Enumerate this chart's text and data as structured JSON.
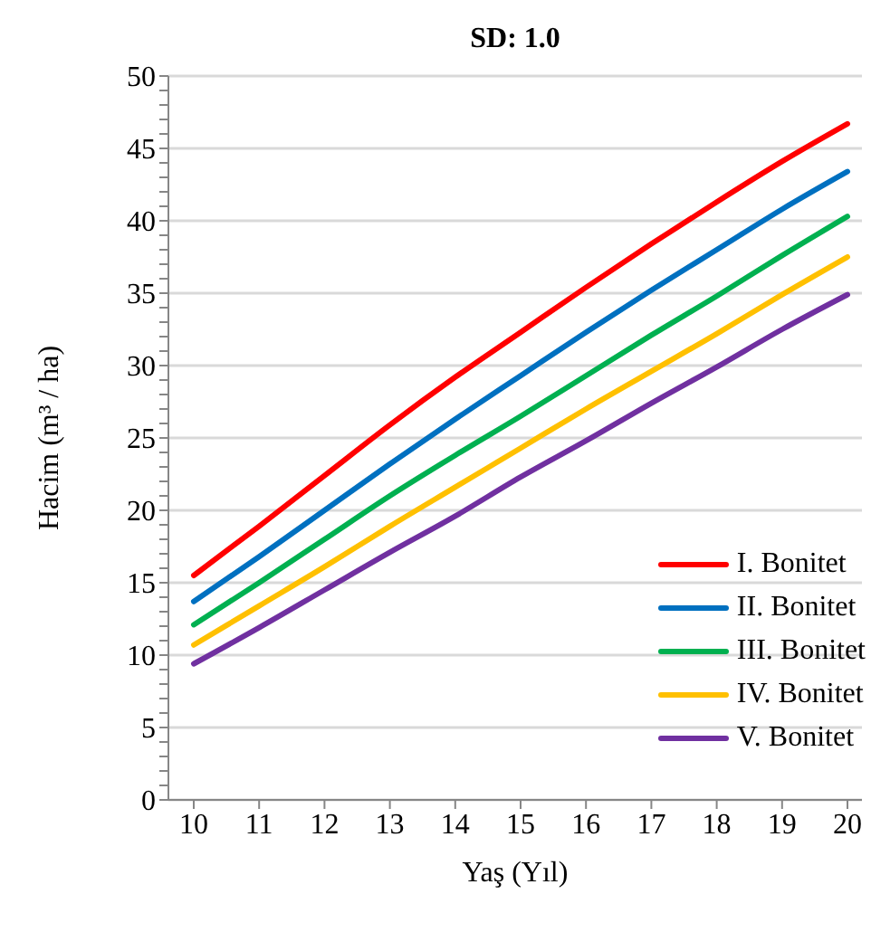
{
  "chart_data": {
    "type": "line",
    "title": "SD: 1.0",
    "xlabel": "Yaş (Yıl)",
    "ylabel": "Hacim (m³ / ha)",
    "categories": [
      "10",
      "11",
      "12",
      "13",
      "14",
      "15",
      "16",
      "17",
      "18",
      "19",
      "20"
    ],
    "series": [
      {
        "name": "I. Bonitet",
        "color": "#ff0000",
        "values": [
          15.5,
          18.9,
          22.4,
          25.9,
          29.2,
          32.3,
          35.4,
          38.4,
          41.3,
          44.1,
          46.7
        ]
      },
      {
        "name": "II. Bonitet",
        "color": "#0070c0",
        "values": [
          13.7,
          16.8,
          20.0,
          23.2,
          26.3,
          29.3,
          32.3,
          35.2,
          38.0,
          40.8,
          43.4
        ]
      },
      {
        "name": "III. Bonitet",
        "color": "#00b050",
        "values": [
          12.1,
          15.0,
          18.0,
          21.0,
          23.8,
          26.5,
          29.3,
          32.1,
          34.8,
          37.6,
          40.3
        ]
      },
      {
        "name": "IV. Bonitet",
        "color": "#ffc000",
        "values": [
          10.7,
          13.4,
          16.1,
          18.9,
          21.6,
          24.3,
          27.0,
          29.6,
          32.2,
          34.9,
          37.5
        ]
      },
      {
        "name": "V. Bonitet",
        "color": "#7030a0",
        "values": [
          9.4,
          11.9,
          14.5,
          17.1,
          19.6,
          22.3,
          24.8,
          27.4,
          29.9,
          32.5,
          34.9
        ]
      }
    ],
    "ylim": [
      0,
      50
    ],
    "yticks": [
      0,
      {
        "value": 1,
        "label": null
      },
      {
        "value": 2,
        "label": null
      },
      {
        "value": 3,
        "label": null
      },
      {
        "value": 4,
        "label": null
      },
      5,
      {
        "value": 6,
        "label": null
      },
      {
        "value": 7,
        "label": null
      },
      {
        "value": 8,
        "label": null
      },
      {
        "value": 9,
        "label": null
      },
      10,
      {
        "value": 11,
        "label": null
      },
      {
        "value": 12,
        "label": null
      },
      {
        "value": 13,
        "label": null
      },
      {
        "value": 14,
        "label": null
      },
      15,
      {
        "value": 16,
        "label": null
      },
      {
        "value": 17,
        "label": null
      },
      {
        "value": 18,
        "label": null
      },
      {
        "value": 19,
        "label": null
      },
      20,
      {
        "value": 21,
        "label": null
      },
      {
        "value": 22,
        "label": null
      },
      {
        "value": 23,
        "label": null
      },
      {
        "value": 24,
        "label": null
      },
      25,
      {
        "value": 26,
        "label": null
      },
      {
        "value": 27,
        "label": null
      },
      {
        "value": 28,
        "label": null
      },
      {
        "value": 29,
        "label": null
      },
      30,
      {
        "value": 31,
        "label": null
      },
      {
        "value": 32,
        "label": null
      },
      {
        "value": 33,
        "label": null
      },
      {
        "value": 34,
        "label": null
      },
      35,
      {
        "value": 36,
        "label": null
      },
      {
        "value": 37,
        "label": null
      },
      {
        "value": 38,
        "label": null
      },
      {
        "value": 39,
        "label": null
      },
      40,
      {
        "value": 41,
        "label": null
      },
      {
        "value": 42,
        "label": null
      },
      {
        "value": 43,
        "label": null
      },
      {
        "value": 44,
        "label": null
      },
      45,
      {
        "value": 46,
        "label": null
      },
      {
        "value": 47,
        "label": null
      },
      {
        "value": 48,
        "label": null
      },
      {
        "value": 49,
        "label": null
      },
      50
    ],
    "grid": "y",
    "legend": "bottom right",
    "marker": "none",
    "line_style": "solid"
  }
}
